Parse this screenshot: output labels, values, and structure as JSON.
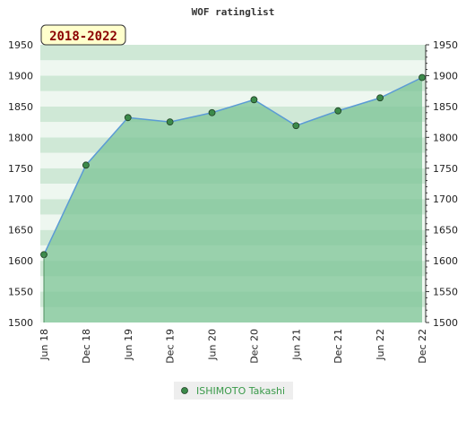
{
  "chart_data": {
    "type": "area",
    "title": "WOF ratinglist",
    "period_label": "2018-2022",
    "categories": [
      "Jun 18",
      "Dec 18",
      "Jun 19",
      "Dec 19",
      "Jun 20",
      "Dec 20",
      "Jun 21",
      "Dec 21",
      "Jun 22",
      "Dec 22"
    ],
    "series": [
      {
        "name": "ISHIMOTO Takashi",
        "values": [
          1610,
          1755,
          1832,
          1825,
          1840,
          1861,
          1819,
          1843,
          1864,
          1897
        ]
      }
    ],
    "ylim": [
      1500,
      1950
    ],
    "yticks": [
      1500,
      1550,
      1600,
      1650,
      1700,
      1750,
      1800,
      1850,
      1900,
      1950
    ],
    "y_axis_sides": "left and right",
    "legend_position": "bottom-center",
    "colors": {
      "line": "#5b9bd5",
      "fill": "#7cc496",
      "marker": "#3c8a4a",
      "band_light": "#eef7f0",
      "band_dark": "#cfe8d6",
      "period_bg": "#ffffcc",
      "period_text": "#8b0000",
      "legend_text": "#3a9a4a"
    }
  }
}
